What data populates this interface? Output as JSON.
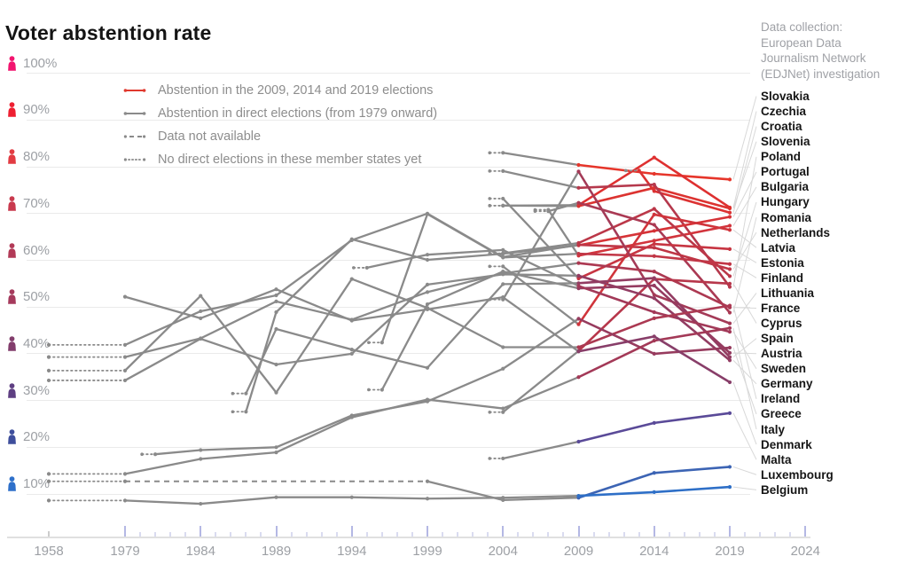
{
  "title": "Voter abstention rate",
  "credit": {
    "line1": "Data collection:",
    "line2": "European Data",
    "line3": "Journalism Network",
    "line4": "(EDJNet) investigation"
  },
  "legend": {
    "items": [
      {
        "label": "Abstention in the 2009, 2014 and 2019 elections",
        "style": "solid",
        "color": "#e0392e"
      },
      {
        "label": "Abstention in direct elections (from 1979 onward)",
        "style": "solid",
        "color": "#8a8a8a"
      },
      {
        "label": "Data not available",
        "style": "dashed",
        "color": "#8a8a8a"
      },
      {
        "label": "No direct elections in these member states yet",
        "style": "dotted",
        "color": "#8a8a8a"
      }
    ]
  },
  "y_axis": {
    "unit": "%",
    "levels": [
      {
        "value": 100,
        "icon_color": "#f2156f"
      },
      {
        "value": 90,
        "icon_color": "#ee1f31"
      },
      {
        "value": 80,
        "icon_color": "#e23b42"
      },
      {
        "value": 70,
        "icon_color": "#c93a4e"
      },
      {
        "value": 60,
        "icon_color": "#b23a57"
      },
      {
        "value": 50,
        "icon_color": "#a53a5c"
      },
      {
        "value": 40,
        "icon_color": "#823d6c"
      },
      {
        "value": 30,
        "icon_color": "#5e3f82"
      },
      {
        "value": 20,
        "icon_color": "#3e4e9c"
      },
      {
        "value": 10,
        "icon_color": "#2e70ca"
      }
    ]
  },
  "x_axis": {
    "labeled_years": [
      1958,
      1979,
      1984,
      1989,
      1994,
      1999,
      2004,
      2009,
      2014,
      2019,
      2024
    ],
    "minor_tick_step_years": 1,
    "major_tick_step_years": 5,
    "major_tick_color": "#b4b8e4",
    "minor_tick_color": "#d9dbf0"
  },
  "chart_data": {
    "type": "line",
    "x_unit": "year",
    "y_unit": "percent_abstention",
    "ylim": [
      0,
      100
    ],
    "xlim": [
      1958,
      2024
    ],
    "grid": true,
    "gray_color": "#8a8a8a",
    "leader_color": "#d8d8d8",
    "colored_segment_note": "segments from 2009 (2013 for Croatia) to 2019 use series color; earlier history is gray",
    "series": [
      {
        "name": "Slovakia",
        "color": "#e6352a",
        "pre": "prefix",
        "points": [
          [
            2004,
            83
          ],
          [
            2009,
            80.4
          ],
          [
            2014,
            78.5
          ],
          [
            2019,
            77.3
          ]
        ]
      },
      {
        "name": "Czechia",
        "color": "#de3030",
        "pre": "prefix",
        "points": [
          [
            2004,
            71.7
          ],
          [
            2009,
            71.8
          ],
          [
            2014,
            82
          ],
          [
            2019,
            71.3
          ]
        ]
      },
      {
        "name": "Croatia",
        "color": "#dc3232",
        "pre": "prefix",
        "points": [
          [
            2013,
            79.2
          ],
          [
            2014,
            74.8
          ],
          [
            2019,
            70.2
          ]
        ]
      },
      {
        "name": "Slovenia",
        "color": "#dc3330",
        "pre": "prefix",
        "points": [
          [
            2004,
            71.7
          ],
          [
            2009,
            71.6
          ],
          [
            2014,
            75.5
          ],
          [
            2019,
            71.1
          ]
        ]
      },
      {
        "name": "Poland",
        "color": "#b5384c",
        "pre": "prefix",
        "points": [
          [
            2004,
            79.1
          ],
          [
            2009,
            75.5
          ],
          [
            2014,
            76.2
          ],
          [
            2019,
            54.3
          ]
        ]
      },
      {
        "name": "Portugal",
        "color": "#d63337",
        "pre": "prefix",
        "points": [
          [
            1987,
            27.6
          ],
          [
            1989,
            48.9
          ],
          [
            1994,
            64.5
          ],
          [
            1999,
            60.1
          ],
          [
            2004,
            61.4
          ],
          [
            2009,
            63.2
          ],
          [
            2014,
            66.3
          ],
          [
            2019,
            69.3
          ]
        ]
      },
      {
        "name": "Bulgaria",
        "color": "#d2343c",
        "pre": "prefix",
        "points": [
          [
            2007,
            70.8
          ],
          [
            2009,
            61
          ],
          [
            2014,
            64.2
          ],
          [
            2019,
            67.4
          ]
        ]
      },
      {
        "name": "Hungary",
        "color": "#bb3748",
        "pre": "prefix",
        "points": [
          [
            2004,
            61.5
          ],
          [
            2009,
            63.7
          ],
          [
            2014,
            71
          ],
          [
            2019,
            56.6
          ]
        ]
      },
      {
        "name": "Romania",
        "color": "#aa3953",
        "pre": "prefix",
        "points": [
          [
            2007,
            70.5
          ],
          [
            2009,
            72.3
          ],
          [
            2014,
            67.6
          ],
          [
            2019,
            48.8
          ]
        ]
      },
      {
        "name": "Netherlands",
        "color": "#bf3545",
        "pre": "dotted1958",
        "points": [
          [
            1979,
            41.9
          ],
          [
            1984,
            49.1
          ],
          [
            1989,
            52.5
          ],
          [
            1994,
            64.3
          ],
          [
            1999,
            70
          ],
          [
            2004,
            60.7
          ],
          [
            2009,
            63.3
          ],
          [
            2014,
            62.7
          ],
          [
            2019,
            58.1
          ]
        ]
      },
      {
        "name": "Latvia",
        "color": "#d0343b",
        "pre": "prefix",
        "points": [
          [
            2004,
            58.7
          ],
          [
            2009,
            46.3
          ],
          [
            2014,
            69.8
          ],
          [
            2019,
            66.5
          ]
        ]
      },
      {
        "name": "Estonia",
        "color": "#c73542",
        "pre": "prefix",
        "points": [
          [
            2004,
            73.2
          ],
          [
            2009,
            56.1
          ],
          [
            2014,
            63.5
          ],
          [
            2019,
            62.4
          ]
        ]
      },
      {
        "name": "Finland",
        "color": "#c13646",
        "pre": "prefix",
        "points": [
          [
            1996,
            42.4
          ],
          [
            1999,
            69.9
          ],
          [
            2004,
            60.6
          ],
          [
            2009,
            61.4
          ],
          [
            2014,
            60.9
          ],
          [
            2019,
            59.2
          ]
        ]
      },
      {
        "name": "Lithuania",
        "color": "#a43a57",
        "pre": "prefix",
        "points": [
          [
            2004,
            51.6
          ],
          [
            2009,
            79
          ],
          [
            2014,
            52.6
          ],
          [
            2019,
            46.5
          ]
        ]
      },
      {
        "name": "France",
        "color": "#ac3851",
        "pre": "dotted1958",
        "points": [
          [
            1979,
            39.3
          ],
          [
            1984,
            43.3
          ],
          [
            1989,
            51.2
          ],
          [
            1994,
            47.3
          ],
          [
            1999,
            53.2
          ],
          [
            2004,
            57.2
          ],
          [
            2009,
            59.4
          ],
          [
            2014,
            57.6
          ],
          [
            2019,
            49.9
          ]
        ]
      },
      {
        "name": "Cyprus",
        "color": "#b7374b",
        "pre": "prefix",
        "points": [
          [
            2004,
            27.5
          ],
          [
            2009,
            40.6
          ],
          [
            2014,
            56
          ],
          [
            2019,
            55
          ]
        ]
      },
      {
        "name": "Spain",
        "color": "#933c62",
        "pre": "prefix",
        "points": [
          [
            1987,
            31.5
          ],
          [
            1989,
            45.3
          ],
          [
            1994,
            40.9
          ],
          [
            1999,
            37
          ],
          [
            2004,
            54.9
          ],
          [
            2009,
            55.1
          ],
          [
            2014,
            56.2
          ],
          [
            2019,
            39.3
          ]
        ]
      },
      {
        "name": "Austria",
        "color": "#953b60",
        "pre": "prefix",
        "points": [
          [
            1996,
            32.3
          ],
          [
            1999,
            50.6
          ],
          [
            2004,
            57.6
          ],
          [
            2009,
            54
          ],
          [
            2014,
            54.6
          ],
          [
            2019,
            40.2
          ]
        ]
      },
      {
        "name": "Sweden",
        "color": "#a23958",
        "pre": "prefix",
        "points": [
          [
            1995,
            58.4
          ],
          [
            1999,
            61.2
          ],
          [
            2004,
            62.2
          ],
          [
            2009,
            54.5
          ],
          [
            2014,
            48.9
          ],
          [
            2019,
            44.7
          ]
        ]
      },
      {
        "name": "Germany",
        "color": "#923c62",
        "pre": "dotted1958",
        "points": [
          [
            1979,
            34.3
          ],
          [
            1984,
            43.2
          ],
          [
            1989,
            37.7
          ],
          [
            1994,
            40
          ],
          [
            1999,
            54.8
          ],
          [
            2004,
            57
          ],
          [
            2009,
            56.7
          ],
          [
            2014,
            51.9
          ],
          [
            2019,
            38.6
          ]
        ]
      },
      {
        "name": "Ireland",
        "color": "#ab3952",
        "pre": "dotted1958",
        "points": [
          [
            1979,
            36.4
          ],
          [
            1984,
            52.4
          ],
          [
            1989,
            31.7
          ],
          [
            1994,
            56
          ],
          [
            1999,
            49.8
          ],
          [
            2004,
            41.4
          ],
          [
            2009,
            41.4
          ],
          [
            2014,
            47.6
          ],
          [
            2019,
            50.3
          ]
        ]
      },
      {
        "name": "Greece",
        "color": "#973b5e",
        "pre": "prefix",
        "points": [
          [
            1981,
            18.5
          ],
          [
            1984,
            19.4
          ],
          [
            1989,
            20
          ],
          [
            1994,
            26.8
          ],
          [
            1999,
            29.8
          ],
          [
            2004,
            36.8
          ],
          [
            2009,
            47.5
          ],
          [
            2014,
            40
          ],
          [
            2019,
            41.3
          ]
        ]
      },
      {
        "name": "Italy",
        "color": "#a33957",
        "pre": "dotted1958",
        "points": [
          [
            1979,
            14.3
          ],
          [
            1984,
            17.5
          ],
          [
            1989,
            18.9
          ],
          [
            1994,
            26.4
          ],
          [
            1999,
            30.2
          ],
          [
            2004,
            28.3
          ],
          [
            2009,
            35
          ],
          [
            2014,
            42.8
          ],
          [
            2019,
            45.5
          ]
        ]
      },
      {
        "name": "Denmark",
        "color": "#883e69",
        "pre": "none",
        "points": [
          [
            1979,
            52.2
          ],
          [
            1984,
            47.6
          ],
          [
            1989,
            53.8
          ],
          [
            1994,
            47.1
          ],
          [
            1999,
            49.5
          ],
          [
            2004,
            52.1
          ],
          [
            2009,
            40.5
          ],
          [
            2014,
            43.7
          ],
          [
            2019,
            33.9
          ]
        ]
      },
      {
        "name": "Malta",
        "color": "#5a4a98",
        "pre": "prefix",
        "points": [
          [
            2004,
            17.6
          ],
          [
            2009,
            21.2
          ],
          [
            2014,
            25.2
          ],
          [
            2019,
            27.3
          ]
        ]
      },
      {
        "name": "Luxembourg",
        "color": "#3c64b4",
        "pre": "dotted1958",
        "dashed_gap": {
          "from": 1979,
          "to": 1999,
          "value": 12.7
        },
        "points": [
          [
            1999,
            12.7
          ],
          [
            2004,
            8.7
          ],
          [
            2009,
            9.2
          ],
          [
            2014,
            14.5
          ],
          [
            2019,
            15.8
          ]
        ]
      },
      {
        "name": "Belgium",
        "color": "#2e6fc7",
        "pre": "dotted1958",
        "points": [
          [
            1979,
            8.6
          ],
          [
            1984,
            7.9
          ],
          [
            1989,
            9.3
          ],
          [
            1994,
            9.3
          ],
          [
            1999,
            9
          ],
          [
            2004,
            9.2
          ],
          [
            2009,
            9.6
          ],
          [
            2014,
            10.4
          ],
          [
            2019,
            11.5
          ]
        ]
      }
    ]
  }
}
